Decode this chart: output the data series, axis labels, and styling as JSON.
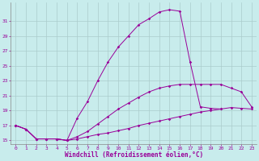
{
  "xlabel": "Windchill (Refroidissement éolien,°C)",
  "bg_color": "#c8ecec",
  "line_color": "#990099",
  "grid_color": "#aacccc",
  "xlim": [
    -0.5,
    23.5
  ],
  "ylim": [
    14.5,
    33.5
  ],
  "yticks": [
    15,
    17,
    19,
    21,
    23,
    25,
    27,
    29,
    31
  ],
  "xticks": [
    0,
    1,
    2,
    3,
    4,
    5,
    6,
    7,
    8,
    9,
    10,
    11,
    12,
    13,
    14,
    15,
    16,
    17,
    18,
    19,
    20,
    21,
    22,
    23
  ],
  "lines": [
    {
      "x": [
        0,
        1,
        2,
        3,
        4,
        5,
        6,
        7,
        8,
        9,
        10,
        11,
        12,
        13,
        14,
        15,
        16,
        17,
        18,
        19,
        20
      ],
      "y": [
        17,
        16.5,
        15.2,
        15.2,
        15.2,
        15.0,
        18.0,
        20.2,
        23.0,
        25.5,
        27.5,
        29.0,
        30.5,
        31.3,
        32.2,
        32.5,
        32.3,
        25.5,
        19.5,
        19.3,
        19.2
      ]
    },
    {
      "x": [
        0,
        1,
        2,
        3,
        4,
        5,
        6,
        7,
        8,
        9,
        10,
        11,
        12,
        13,
        14,
        15,
        16,
        17,
        18,
        19,
        20,
        21,
        22,
        23
      ],
      "y": [
        17,
        16.5,
        15.2,
        15.2,
        15.2,
        15.0,
        15.5,
        16.2,
        17.2,
        18.2,
        19.2,
        20.0,
        20.8,
        21.5,
        22.0,
        22.3,
        22.5,
        22.5,
        22.5,
        22.5,
        22.5,
        22.0,
        21.5,
        19.5
      ]
    },
    {
      "x": [
        0,
        1,
        2,
        3,
        4,
        5,
        6,
        7,
        8,
        9,
        10,
        11,
        12,
        13,
        14,
        15,
        16,
        17,
        18,
        19,
        20,
        21,
        22,
        23
      ],
      "y": [
        17,
        16.5,
        15.2,
        15.2,
        15.2,
        15.0,
        15.2,
        15.5,
        15.8,
        16.0,
        16.3,
        16.6,
        17.0,
        17.3,
        17.6,
        17.9,
        18.2,
        18.5,
        18.8,
        19.0,
        19.2,
        19.4,
        19.3,
        19.2
      ]
    }
  ]
}
